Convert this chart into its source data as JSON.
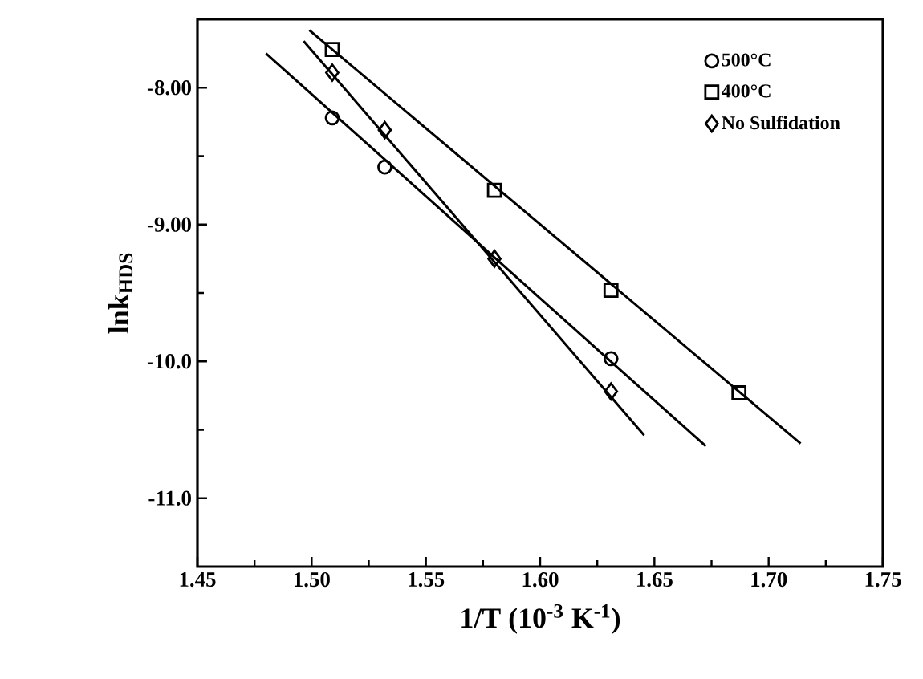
{
  "chart_data": {
    "type": "scatter",
    "xlabel": "1/T (10$^{-3}$ K$^{-1}$)",
    "ylabel": "lnk$_{HDS}$",
    "xlim": [
      1.45,
      1.75
    ],
    "ylim": [
      -11.5,
      -7.5
    ],
    "xticks": [
      1.45,
      {
        "value": 1.5,
        "label": "1.50"
      },
      1.55,
      {
        "value": 1.6,
        "label": "1.60"
      },
      1.65,
      {
        "value": 1.7,
        "label": "1.70"
      },
      1.75
    ],
    "yticks": [
      {
        "value": -8,
        "label": "-8.00"
      },
      {
        "value": -9,
        "label": "-9.00"
      },
      {
        "value": -10,
        "label": "-10.0"
      },
      {
        "value": -11,
        "label": "-11.0"
      }
    ],
    "legend": "top right",
    "grid": false,
    "series": [
      {
        "name": "500°C",
        "marker": "circle",
        "color": "#000000",
        "x": [
          1.509,
          1.532,
          1.631
        ],
        "values": [
          -8.22,
          -8.58,
          -9.98
        ]
      },
      {
        "name": "400°C",
        "marker": "square",
        "color": "#000000",
        "x": [
          1.509,
          1.58,
          1.631,
          1.687
        ],
        "values": [
          -7.72,
          -8.75,
          -9.48,
          -10.23
        ]
      },
      {
        "name": "No Sulfidation",
        "marker": "diamond",
        "color": "#000000",
        "x": [
          1.509,
          1.532,
          1.58,
          1.631
        ],
        "values": [
          -7.89,
          -8.31,
          -9.25,
          -10.22
        ]
      },
      {
        "type": "line",
        "marker": "none",
        "line_style": "solid",
        "color": "#000000",
        "x": [
          1.48,
          1.6725
        ],
        "values": [
          -7.75,
          -10.62
        ]
      },
      {
        "type": "line",
        "marker": "none",
        "line_style": "solid",
        "color": "#000000",
        "x": [
          1.499,
          1.714
        ],
        "values": [
          -7.58,
          -10.6
        ]
      },
      {
        "type": "line",
        "marker": "none",
        "line_style": "solid",
        "color": "#000000",
        "x": [
          1.4965,
          1.6455
        ],
        "values": [
          -7.66,
          -10.54
        ]
      }
    ]
  }
}
